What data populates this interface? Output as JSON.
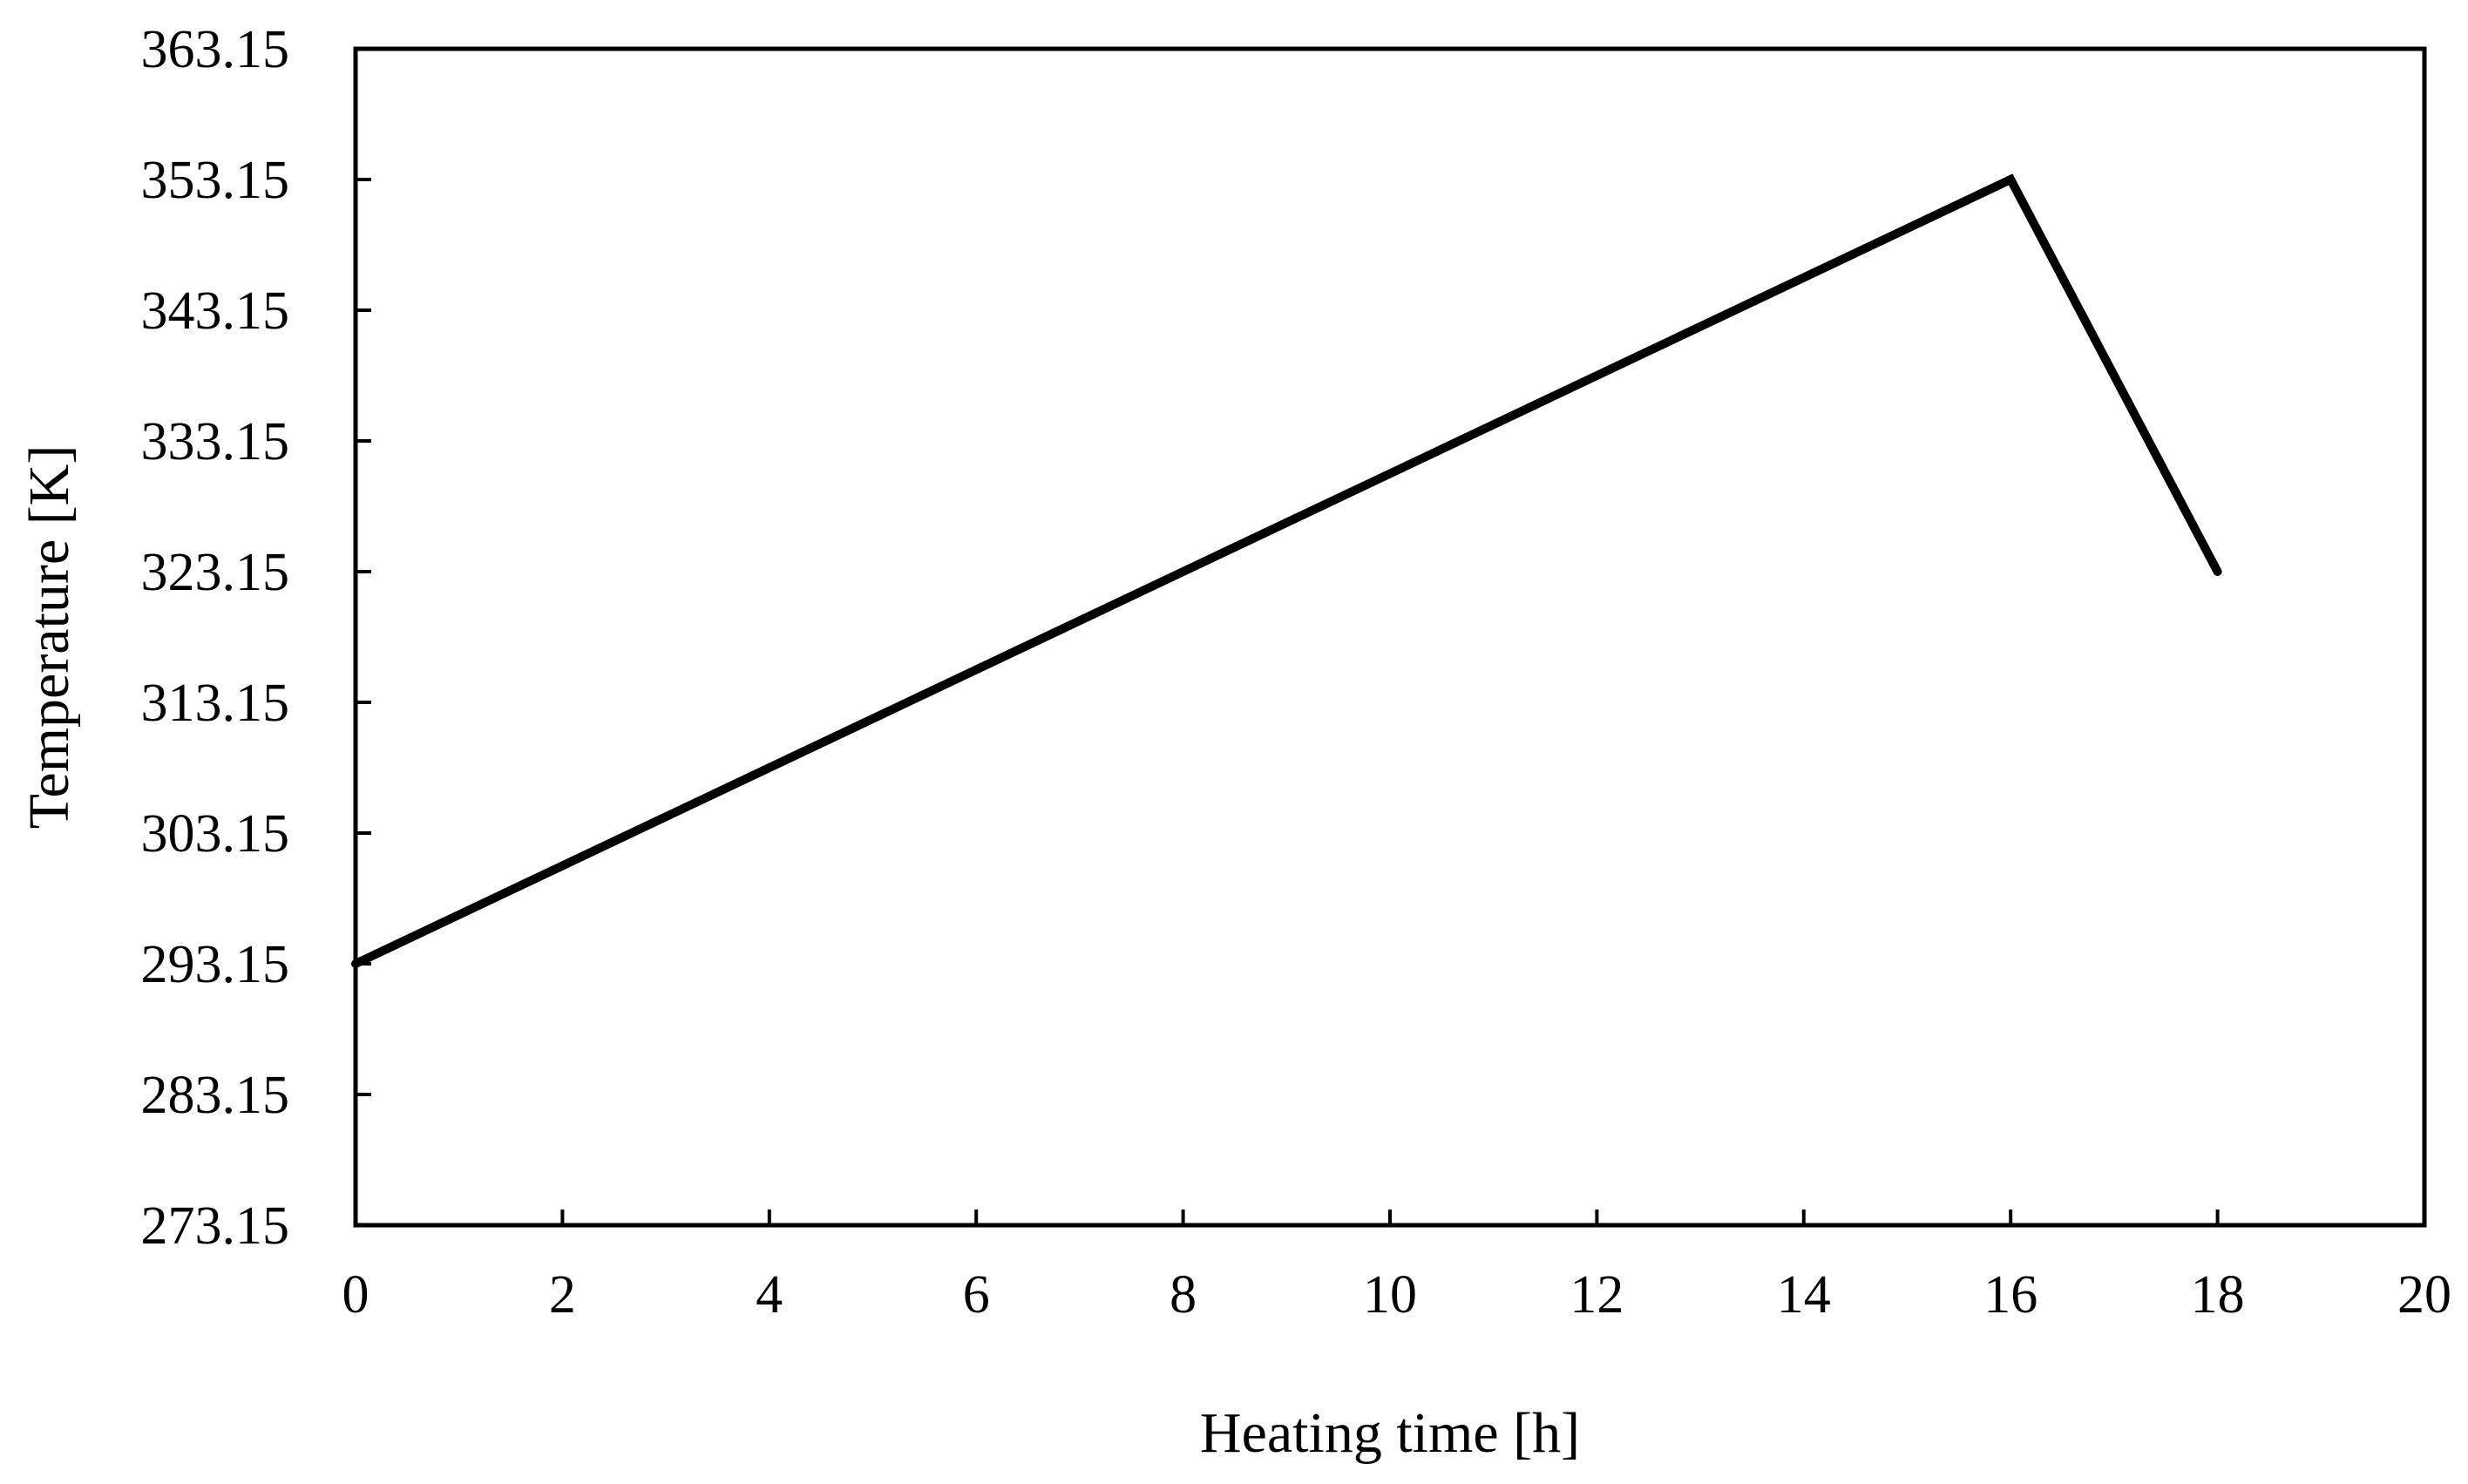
{
  "chart_data": {
    "type": "line",
    "title": "",
    "xlabel": "Heating time [h]",
    "ylabel": "Temperature [K]",
    "xlim": [
      0,
      20
    ],
    "ylim": [
      273.15,
      363.15
    ],
    "x_ticks": [
      "0",
      "2",
      "4",
      "6",
      "8",
      "10",
      "12",
      "14",
      "16",
      "18",
      "20"
    ],
    "y_ticks": [
      "273.15",
      "283.15",
      "293.15",
      "303.15",
      "313.15",
      "323.15",
      "333.15",
      "343.15",
      "353.15",
      "363.15"
    ],
    "grid": false,
    "legend": "none",
    "line_color": "#000000",
    "series": [
      {
        "x": [
          0,
          16,
          18
        ],
        "values": [
          293.15,
          353.15,
          323.15
        ]
      }
    ]
  }
}
